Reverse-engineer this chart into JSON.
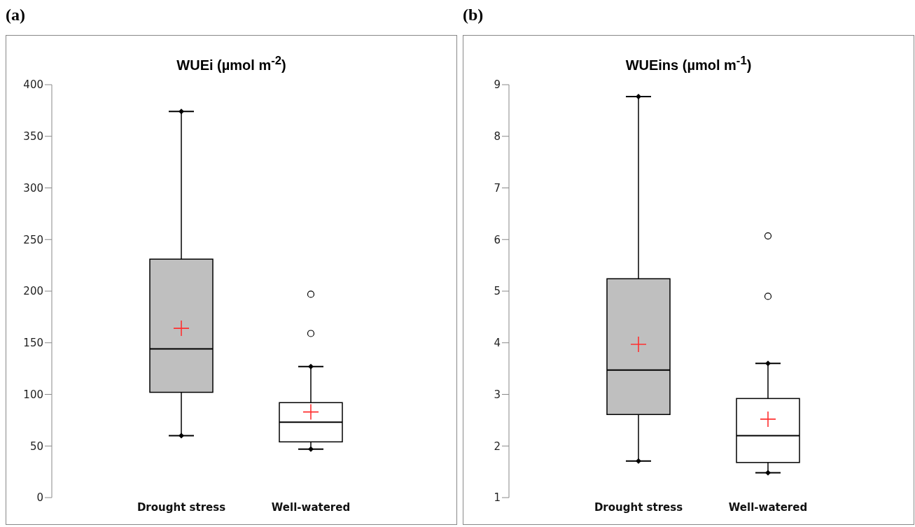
{
  "chart_data": [
    {
      "type": "box",
      "title": "WUEi (µmol m$^{-2}$)",
      "annotations": [
        "(a)"
      ],
      "categories": [
        "Drought stress",
        "Well-watered"
      ],
      "colors": [
        "#bfbfbf",
        "#ffffff"
      ],
      "ylim": [
        0,
        400
      ],
      "yticks": [
        0,
        50,
        100,
        150,
        200,
        250,
        300,
        350,
        400
      ],
      "boxes": [
        {
          "low": 60,
          "q1": 102,
          "median": 144,
          "q3": 231,
          "high": 374,
          "mean": 164
        },
        {
          "low": 47,
          "q1": 54,
          "median": 73,
          "q3": 92,
          "high": 127,
          "mean": 83,
          "outliers": [
            159,
            197
          ]
        }
      ]
    },
    {
      "type": "box",
      "title": "WUEins (µmol m$^{-1}$)",
      "annotations": [
        "(b)"
      ],
      "categories": [
        "Drought stress",
        "Well-watered"
      ],
      "colors": [
        "#bfbfbf",
        "#ffffff"
      ],
      "ylim": [
        1,
        9
      ],
      "yticks": [
        1,
        2,
        3,
        4,
        5,
        6,
        7,
        8,
        9
      ],
      "boxes": [
        {
          "low": 1.71,
          "q1": 2.61,
          "median": 3.47,
          "q3": 5.24,
          "high": 8.77,
          "mean": 3.97
        },
        {
          "low": 1.48,
          "q1": 1.68,
          "median": 2.2,
          "q3": 2.92,
          "high": 3.6,
          "mean": 2.52,
          "outliers": [
            4.9,
            6.07
          ]
        }
      ]
    }
  ]
}
